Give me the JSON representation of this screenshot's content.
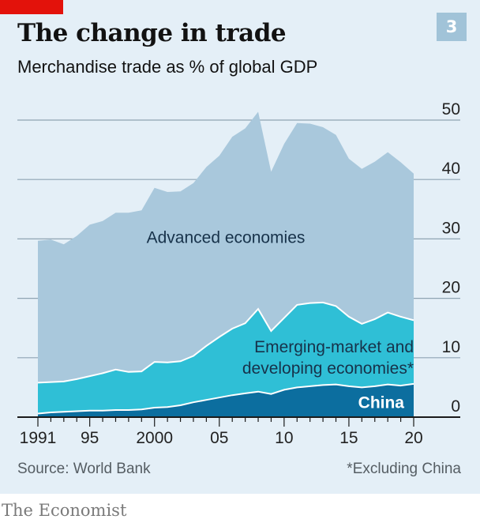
{
  "header": {
    "title": "The change in trade",
    "subtitle": "Merchandise trade as % of global GDP",
    "badge": "3"
  },
  "footer": {
    "source": "Source: World Bank",
    "footnote": "*Excluding China",
    "brand": "The Economist"
  },
  "colors": {
    "background": "#e4eff7",
    "advanced": "#a9c8dc",
    "emerging": "#2fbfd6",
    "china": "#0c6e9f",
    "grid": "#8fa4b3",
    "accent_red": "#e3120b"
  },
  "chart_data": {
    "type": "area",
    "stacked": true,
    "title": "The change in trade",
    "subtitle": "Merchandise trade as % of global GDP",
    "x": [
      1991,
      1992,
      1993,
      1994,
      1995,
      1996,
      1997,
      1998,
      1999,
      2000,
      2001,
      2002,
      2003,
      2004,
      2005,
      2006,
      2007,
      2008,
      2009,
      2010,
      2011,
      2012,
      2013,
      2014,
      2015,
      2016,
      2017,
      2018,
      2019,
      2020
    ],
    "x_tick_values": [
      1991,
      1995,
      2000,
      2005,
      2010,
      2015,
      2020
    ],
    "x_tick_labels": [
      "1991",
      "95",
      "2000",
      "05",
      "10",
      "15",
      "20"
    ],
    "ylim": [
      0,
      50
    ],
    "y_ticks": [
      0,
      10,
      20,
      30,
      40,
      50
    ],
    "y_axis_position": "right",
    "grid": true,
    "series": [
      {
        "name": "China",
        "label": "China",
        "values": [
          0.6,
          0.8,
          0.9,
          1.0,
          1.1,
          1.1,
          1.2,
          1.2,
          1.3,
          1.6,
          1.7,
          2.0,
          2.5,
          2.9,
          3.3,
          3.7,
          4.0,
          4.3,
          3.9,
          4.6,
          5.0,
          5.2,
          5.4,
          5.5,
          5.2,
          5.0,
          5.2,
          5.5,
          5.3,
          5.6
        ]
      },
      {
        "name": "Emerging-market and developing economies*",
        "label_lines": [
          "Emerging-market and",
          "developing economies*"
        ],
        "values": [
          5.2,
          5.1,
          5.1,
          5.4,
          5.8,
          6.3,
          6.8,
          6.4,
          6.4,
          7.7,
          7.5,
          7.4,
          7.8,
          9.1,
          10.2,
          11.2,
          11.8,
          13.9,
          10.6,
          12.1,
          13.9,
          14.0,
          13.9,
          13.2,
          11.7,
          10.7,
          11.3,
          12.1,
          11.6,
          10.7
        ]
      },
      {
        "name": "Advanced economies",
        "label": "Advanced economies",
        "values": [
          23.9,
          24.0,
          23.1,
          24.1,
          25.5,
          25.6,
          26.4,
          26.8,
          27.1,
          29.3,
          28.7,
          28.6,
          29.1,
          30.1,
          30.5,
          32.3,
          32.8,
          33.2,
          26.8,
          29.3,
          30.6,
          30.2,
          29.5,
          28.8,
          26.6,
          26.1,
          26.5,
          27.0,
          26.0,
          24.7
        ]
      }
    ]
  }
}
